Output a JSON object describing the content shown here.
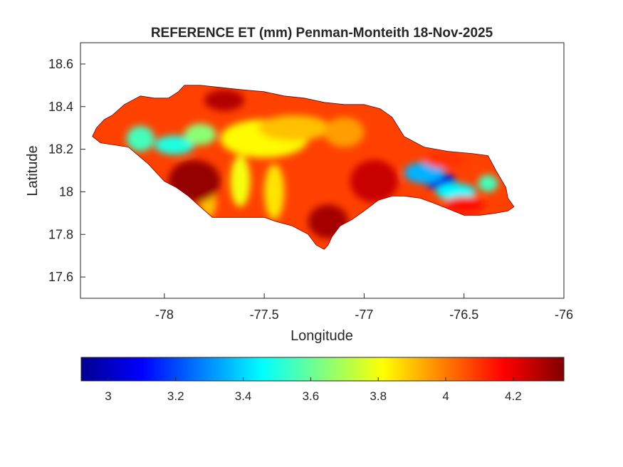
{
  "chart_data": {
    "type": "heatmap",
    "title": "REFERENCE ET (mm) Penman-Monteith 18-Nov-2025",
    "xlabel": "Longitude",
    "ylabel": "Latitude",
    "xlim": [
      -78.42,
      -76
    ],
    "ylim": [
      17.5,
      18.7
    ],
    "xticks": [
      -78,
      -77.5,
      -77,
      -76.5,
      -76
    ],
    "xtick_labels": [
      "-78",
      "-77.5",
      "-77",
      "-76.5",
      "-76"
    ],
    "yticks": [
      17.6,
      17.8,
      18,
      18.2,
      18.4,
      18.6
    ],
    "ytick_labels": [
      "17.6",
      "17.8",
      "18",
      "18.2",
      "18.4",
      "18.6"
    ],
    "grid": false,
    "colormap": "jet",
    "colorbar": {
      "orientation": "horizontal",
      "location": "below",
      "clim": [
        2.92,
        4.35
      ],
      "ticks": [
        3,
        3.2,
        3.4,
        3.6,
        3.8,
        4,
        4.2
      ],
      "tick_labels": [
        "3",
        "3.2",
        "3.4",
        "3.6",
        "3.8",
        "4",
        "4.2"
      ]
    },
    "region_outline": [
      [
        -78.36,
        18.26
      ],
      [
        -78.34,
        18.3
      ],
      [
        -78.3,
        18.34
      ],
      [
        -78.26,
        18.36
      ],
      [
        -78.2,
        18.41
      ],
      [
        -78.12,
        18.45
      ],
      [
        -78.05,
        18.44
      ],
      [
        -77.98,
        18.44
      ],
      [
        -77.93,
        18.47
      ],
      [
        -77.9,
        18.5
      ],
      [
        -77.82,
        18.5
      ],
      [
        -77.72,
        18.49
      ],
      [
        -77.62,
        18.48
      ],
      [
        -77.5,
        18.47
      ],
      [
        -77.4,
        18.45
      ],
      [
        -77.3,
        18.44
      ],
      [
        -77.2,
        18.42
      ],
      [
        -77.1,
        18.41
      ],
      [
        -77.0,
        18.41
      ],
      [
        -76.92,
        18.39
      ],
      [
        -76.86,
        18.35
      ],
      [
        -76.8,
        18.26
      ],
      [
        -76.7,
        18.21
      ],
      [
        -76.58,
        18.19
      ],
      [
        -76.46,
        18.18
      ],
      [
        -76.38,
        18.17
      ],
      [
        -76.34,
        18.1
      ],
      [
        -76.29,
        18.02
      ],
      [
        -76.28,
        17.97
      ],
      [
        -76.25,
        17.93
      ],
      [
        -76.28,
        17.91
      ],
      [
        -76.34,
        17.9
      ],
      [
        -76.42,
        17.89
      ],
      [
        -76.5,
        17.89
      ],
      [
        -76.58,
        17.92
      ],
      [
        -76.66,
        17.95
      ],
      [
        -76.72,
        17.97
      ],
      [
        -76.8,
        17.98
      ],
      [
        -76.86,
        17.98
      ],
      [
        -76.93,
        17.96
      ],
      [
        -77.0,
        17.91
      ],
      [
        -77.06,
        17.87
      ],
      [
        -77.12,
        17.84
      ],
      [
        -77.16,
        17.79
      ],
      [
        -77.18,
        17.75
      ],
      [
        -77.2,
        17.73
      ],
      [
        -77.24,
        17.75
      ],
      [
        -77.28,
        17.8
      ],
      [
        -77.36,
        17.84
      ],
      [
        -77.44,
        17.86
      ],
      [
        -77.5,
        17.88
      ],
      [
        -77.6,
        17.88
      ],
      [
        -77.7,
        17.88
      ],
      [
        -77.76,
        17.88
      ],
      [
        -77.82,
        17.93
      ],
      [
        -77.88,
        17.98
      ],
      [
        -77.94,
        18.02
      ],
      [
        -78.0,
        18.05
      ],
      [
        -78.08,
        18.13
      ],
      [
        -78.13,
        18.17
      ],
      [
        -78.18,
        18.21
      ],
      [
        -78.25,
        18.22
      ],
      [
        -78.32,
        18.23
      ]
    ],
    "field_features": [
      {
        "lon": -78.12,
        "lat": 18.25,
        "value": 3.55,
        "rx": 0.07,
        "ry": 0.06
      },
      {
        "lon": -77.95,
        "lat": 18.22,
        "value": 3.5,
        "rx": 0.1,
        "ry": 0.045
      },
      {
        "lon": -77.82,
        "lat": 18.27,
        "value": 3.65,
        "rx": 0.08,
        "ry": 0.05
      },
      {
        "lon": -77.5,
        "lat": 18.25,
        "value": 3.82,
        "rx": 0.22,
        "ry": 0.09
      },
      {
        "lon": -77.35,
        "lat": 18.3,
        "value": 3.9,
        "rx": 0.18,
        "ry": 0.06
      },
      {
        "lon": -77.62,
        "lat": 18.05,
        "value": 3.8,
        "rx": 0.05,
        "ry": 0.12
      },
      {
        "lon": -77.45,
        "lat": 18.0,
        "value": 3.85,
        "rx": 0.05,
        "ry": 0.13
      },
      {
        "lon": -77.78,
        "lat": 17.95,
        "value": 3.9,
        "rx": 0.04,
        "ry": 0.07
      },
      {
        "lon": -77.1,
        "lat": 18.28,
        "value": 3.95,
        "rx": 0.1,
        "ry": 0.07
      },
      {
        "lon": -77.85,
        "lat": 18.05,
        "value": 4.32,
        "rx": 0.13,
        "ry": 0.1
      },
      {
        "lon": -77.18,
        "lat": 17.86,
        "value": 4.3,
        "rx": 0.1,
        "ry": 0.08
      },
      {
        "lon": -76.95,
        "lat": 18.05,
        "value": 4.25,
        "rx": 0.12,
        "ry": 0.1
      },
      {
        "lon": -77.7,
        "lat": 18.43,
        "value": 4.28,
        "rx": 0.1,
        "ry": 0.05
      },
      {
        "lon": -76.62,
        "lat": 18.05,
        "value": 3.05,
        "rx": 0.08,
        "ry": 0.04
      },
      {
        "lon": -76.7,
        "lat": 18.09,
        "value": 3.35,
        "rx": 0.1,
        "ry": 0.05
      },
      {
        "lon": -76.54,
        "lat": 18.0,
        "value": 3.45,
        "rx": 0.1,
        "ry": 0.04
      },
      {
        "lon": -76.38,
        "lat": 18.04,
        "value": 3.55,
        "rx": 0.05,
        "ry": 0.04
      },
      {
        "lon": -76.5,
        "lat": 17.94,
        "value": 4.15,
        "rx": 0.1,
        "ry": 0.04
      },
      {
        "lon": -76.6,
        "lat": 18.15,
        "value": 4.1,
        "rx": 0.1,
        "ry": 0.04
      }
    ],
    "background_value": 4.08
  }
}
